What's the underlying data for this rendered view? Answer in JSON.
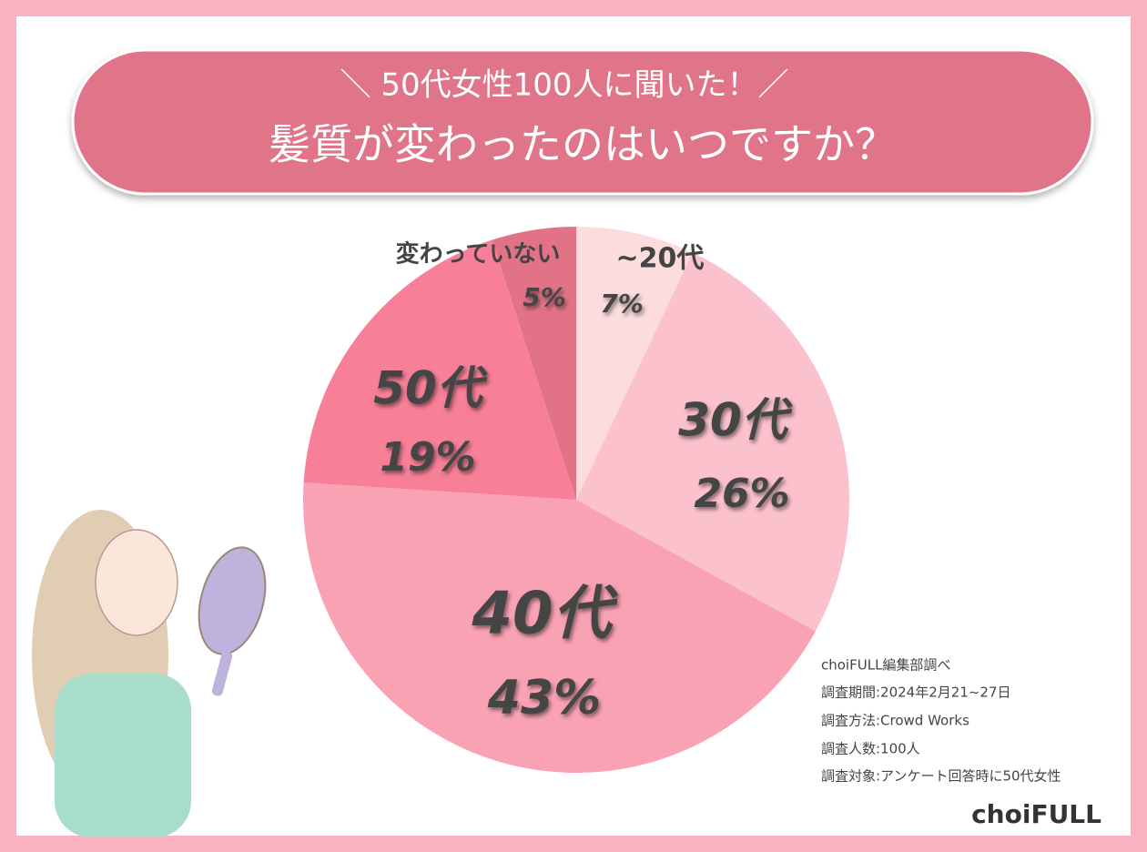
{
  "chart_data": {
    "type": "pie",
    "subtitle": "＼ 50代女性100人に聞いた！／",
    "title": "髪質が変わったのはいつですか？",
    "categories": [
      "~20代",
      "30代",
      "40代",
      "50代",
      "変わっていない"
    ],
    "values": [
      7,
      26,
      43,
      19,
      5
    ],
    "value_labels": [
      "7%",
      "26%",
      "43%",
      "19%",
      "5%"
    ],
    "colors": [
      "#fcdcdd",
      "#fbc1cc",
      "#f9a2b3",
      "#f77f97",
      "#e27387"
    ],
    "notes": [
      "choiFULL編集部調べ",
      "調査期間:2024年2月21~27日",
      "調査方法:Crowd Works",
      "調査人数:100人",
      "調査対象:アンケート回答時に50代女性"
    ],
    "logo": "choiFULL"
  }
}
